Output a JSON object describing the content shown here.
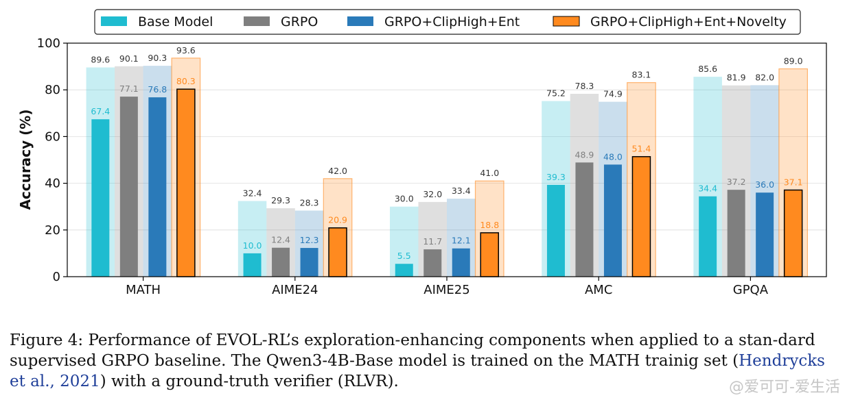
{
  "chart_data": {
    "type": "bar",
    "categories": [
      "MATH",
      "AIME24",
      "AIME25",
      "AMC",
      "GPQA"
    ],
    "ylabel": "Accuracy (%)",
    "ylim": [
      0,
      100
    ],
    "yticks": [
      0,
      20,
      40,
      60,
      80,
      100
    ],
    "grid": "y",
    "legend": "top-center",
    "series": [
      {
        "name": "Base Model",
        "color": "#1fbcd0",
        "label_color": "#1fbcd0",
        "values": [
          67.4,
          10.0,
          5.5,
          39.3,
          34.4
        ],
        "value_labels": [
          "67.4",
          "10.0",
          "5.5",
          "39.3",
          "34.4"
        ],
        "background_values": [
          89.6,
          32.4,
          30.0,
          75.2,
          85.6
        ],
        "background_labels": [
          "89.6",
          "32.4",
          "30.0",
          "75.2",
          "85.6"
        ]
      },
      {
        "name": "GRPO",
        "color": "#7f7f7f",
        "label_color": "#7f7f7f",
        "values": [
          77.1,
          12.4,
          11.7,
          48.9,
          37.2
        ],
        "value_labels": [
          "77.1",
          "12.4",
          "11.7",
          "48.9",
          "37.2"
        ],
        "background_values": [
          90.1,
          29.3,
          32.0,
          78.3,
          81.9
        ],
        "background_labels": [
          "90.1",
          "29.3",
          "32.0",
          "78.3",
          "81.9"
        ]
      },
      {
        "name": "GRPO+ClipHigh+Ent",
        "color": "#2a7ab9",
        "label_color": "#2a7ab9",
        "values": [
          76.8,
          12.3,
          12.1,
          48.0,
          36.0
        ],
        "value_labels": [
          "76.8",
          "12.3",
          "12.1",
          "48.0",
          "36.0"
        ],
        "background_values": [
          90.3,
          28.3,
          33.4,
          74.9,
          82.0
        ],
        "background_labels": [
          "90.3",
          "28.3",
          "33.4",
          "74.9",
          "82.0"
        ]
      },
      {
        "name": "GRPO+ClipHigh+Ent+Novelty",
        "color": "#ff8a1f",
        "label_color": "#ff8a1f",
        "values": [
          80.3,
          20.9,
          18.8,
          51.4,
          37.1
        ],
        "value_labels": [
          "80.3",
          "20.9",
          "18.8",
          "51.4",
          "37.1"
        ],
        "background_values": [
          93.6,
          42.0,
          41.0,
          83.1,
          89.0
        ],
        "background_labels": [
          "93.6",
          "42.0",
          "41.0",
          "83.1",
          "89.0"
        ]
      }
    ]
  },
  "caption": {
    "part1": "Figure 4: Performance of EVOL-RL’s exploration-enhancing components when applied to a stan-dard supervised GRPO baseline. The Qwen3-4B-Base model is trained on the MATH trainig set (",
    "cite": "Hendrycks et al., 2021",
    "part2": ") with a ground-truth verifier (RLVR)."
  },
  "watermark": "@爱可可-爱生活"
}
